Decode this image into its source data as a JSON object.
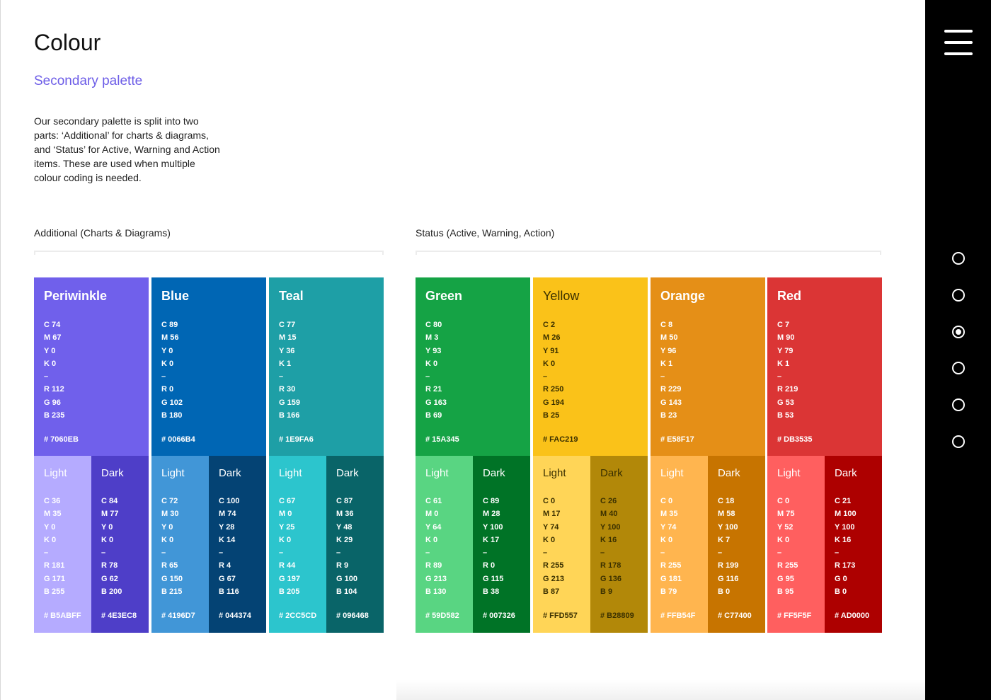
{
  "page": {
    "title": "Colour",
    "subtitle": "Secondary palette",
    "intro": "Our secondary palette is split into two\nparts: ‘Additional’ for charts & diagrams,\nand ‘Status’ for Active, Warning and Action\nitems. These are used when multiple\ncolour coding is needed."
  },
  "groups": [
    {
      "label": "Additional (Charts & Diagrams)"
    },
    {
      "label": "Status (Active, Warning, Action)"
    }
  ],
  "swatches": [
    {
      "name": "Periwinkle",
      "color": "#7060EB",
      "cmyk": [
        "C 74",
        "M 67",
        "Y 0",
        "K 0"
      ],
      "rgb": [
        "R 112",
        "G 96",
        "B 235"
      ],
      "hex": "# 7060EB",
      "light": {
        "label": "Light",
        "color": "#B5ABFF",
        "cmyk": [
          "C 36",
          "M 35",
          "Y 0",
          "K 0"
        ],
        "rgb": [
          "R 181",
          "G 171",
          "B 255"
        ],
        "hex": "# B5ABFF"
      },
      "dark": {
        "label": "Dark",
        "color": "#4E3EC8",
        "cmyk": [
          "C 84",
          "M 77",
          "Y 0",
          "K 0"
        ],
        "rgb": [
          "R 78",
          "G 62",
          "B 200"
        ],
        "hex": "# 4E3EC8"
      }
    },
    {
      "name": "Blue",
      "color": "#0066B4",
      "cmyk": [
        "C 89",
        "M 56",
        "Y 0",
        "K 0"
      ],
      "rgb": [
        "R 0",
        "G 102",
        "B 180"
      ],
      "hex": "# 0066B4",
      "light": {
        "label": "Light",
        "color": "#4196D7",
        "cmyk": [
          "C 72",
          "M 30",
          "Y 0",
          "K 0"
        ],
        "rgb": [
          "R 65",
          "G 150",
          "B 215"
        ],
        "hex": "# 4196D7"
      },
      "dark": {
        "label": "Dark",
        "color": "#044374",
        "cmyk": [
          "C 100",
          "M 74",
          "Y 28",
          "K 14"
        ],
        "rgb": [
          "R 4",
          "G 67",
          "B 116"
        ],
        "hex": "# 044374"
      }
    },
    {
      "name": "Teal",
      "color": "#1E9FA6",
      "cmyk": [
        "C 77",
        "M 15",
        "Y 36",
        "K 1"
      ],
      "rgb": [
        "R 30",
        "G 159",
        "B 166"
      ],
      "hex": "# 1E9FA6",
      "light": {
        "label": "Light",
        "color": "#2CC5CD",
        "cmyk": [
          "C 67",
          "M 0",
          "Y 25",
          "K 0"
        ],
        "rgb": [
          "R 44",
          "G 197",
          "B 205"
        ],
        "hex": "# 2CC5CD"
      },
      "dark": {
        "label": "Dark",
        "color": "#096468",
        "cmyk": [
          "C 87",
          "M 36",
          "Y 48",
          "K 29"
        ],
        "rgb": [
          "R 9",
          "G 100",
          "B 104"
        ],
        "hex": "# 096468"
      }
    },
    {
      "name": "Green",
      "color": "#15A345",
      "cmyk": [
        "C 80",
        "M 3",
        "Y 93",
        "K 0"
      ],
      "rgb": [
        "R 21",
        "G 163",
        "B 69"
      ],
      "hex": "# 15A345",
      "light": {
        "label": "Light",
        "color": "#59D582",
        "cmyk": [
          "C 61",
          "M 0",
          "Y 64",
          "K 0"
        ],
        "rgb": [
          "R 89",
          "G 213",
          "B 130"
        ],
        "hex": "# 59D582"
      },
      "dark": {
        "label": "Dark",
        "color": "#007326",
        "cmyk": [
          "C 89",
          "M 28",
          "Y 100",
          "K 17"
        ],
        "rgb": [
          "R 0",
          "G 115",
          "B 38"
        ],
        "hex": "# 007326"
      }
    },
    {
      "name": "Yellow",
      "color": "#FAC219",
      "cmyk": [
        "C 2",
        "M 26",
        "Y 91",
        "K 0"
      ],
      "rgb": [
        "R 250",
        "G 194",
        "B 25"
      ],
      "hex": "# FAC219",
      "light": {
        "label": "Light",
        "color": "#FFD557",
        "cmyk": [
          "C 0",
          "M 17",
          "Y 74",
          "K 0"
        ],
        "rgb": [
          "R 255",
          "G 213",
          "B 87"
        ],
        "hex": "# FFD557"
      },
      "dark": {
        "label": "Dark",
        "color": "#B28809",
        "cmyk": [
          "C 26",
          "M 40",
          "Y 100",
          "K 16"
        ],
        "rgb": [
          "R 178",
          "G 136",
          "B 9"
        ],
        "hex": "# B28809"
      }
    },
    {
      "name": "Orange",
      "color": "#E58F17",
      "cmyk": [
        "C 8",
        "M 50",
        "Y 96",
        "K 1"
      ],
      "rgb": [
        "R 229",
        "G 143",
        "B 23"
      ],
      "hex": "# E58F17",
      "light": {
        "label": "Light",
        "color": "#FFB54F",
        "cmyk": [
          "C 0",
          "M 35",
          "Y 74",
          "K 0"
        ],
        "rgb": [
          "R 255",
          "G 181",
          "B 79"
        ],
        "hex": "# FFB54F"
      },
      "dark": {
        "label": "Dark",
        "color": "#C77400",
        "cmyk": [
          "C 18",
          "M 58",
          "Y 100",
          "K 7"
        ],
        "rgb": [
          "R 199",
          "G 116",
          "B 0"
        ],
        "hex": "# C77400"
      }
    },
    {
      "name": "Red",
      "color": "#DB3535",
      "cmyk": [
        "C 7",
        "M 90",
        "Y 79",
        "K 1"
      ],
      "rgb": [
        "R 219",
        "G 53",
        "B 53"
      ],
      "hex": "# DB3535",
      "light": {
        "label": "Light",
        "color": "#FF5F5F",
        "cmyk": [
          "C 0",
          "M 75",
          "Y 52",
          "K 0"
        ],
        "rgb": [
          "R 255",
          "G 95",
          "B 95"
        ],
        "hex": "# FF5F5F"
      },
      "dark": {
        "label": "Dark",
        "color": "#AD0000",
        "cmyk": [
          "C 21",
          "M 100",
          "Y 100",
          "K 16"
        ],
        "rgb": [
          "R 173",
          "G 0",
          "B 0"
        ],
        "hex": "# AD0000"
      }
    }
  ],
  "separator": "–",
  "nav": {
    "dots": 6,
    "active_index": 2
  }
}
